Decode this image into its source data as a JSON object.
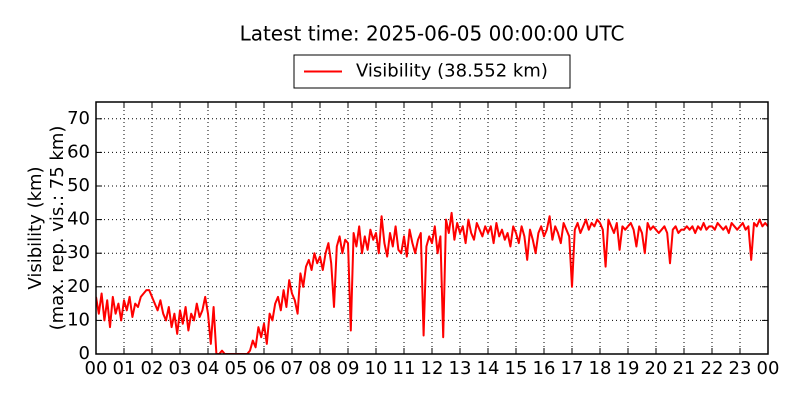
{
  "chart_data": {
    "type": "line",
    "title": "Latest time: 2025-06-05 00:00:00 UTC",
    "ylabel": [
      "Visibility (km)",
      "(max. rep. vis.: 75 km)"
    ],
    "legend": "top",
    "grid": true,
    "xlim": [
      0,
      24
    ],
    "ylim": [
      0,
      75
    ],
    "yticks": [
      0,
      10,
      20,
      30,
      40,
      50,
      60,
      70
    ],
    "xticks": [
      {
        "value": 0,
        "label": "00"
      },
      {
        "value": 1,
        "label": "01"
      },
      {
        "value": 2,
        "label": "02"
      },
      {
        "value": 3,
        "label": "03"
      },
      {
        "value": 4,
        "label": "04"
      },
      {
        "value": 5,
        "label": "05"
      },
      {
        "value": 6,
        "label": "06"
      },
      {
        "value": 7,
        "label": "07"
      },
      {
        "value": 8,
        "label": "08"
      },
      {
        "value": 9,
        "label": "09"
      },
      {
        "value": 10,
        "label": "10"
      },
      {
        "value": 11,
        "label": "11"
      },
      {
        "value": 12,
        "label": "12"
      },
      {
        "value": 13,
        "label": "13"
      },
      {
        "value": 14,
        "label": "14"
      },
      {
        "value": 15,
        "label": "15"
      },
      {
        "value": 16,
        "label": "16"
      },
      {
        "value": 17,
        "label": "17"
      },
      {
        "value": 18,
        "label": "18"
      },
      {
        "value": 19,
        "label": "19"
      },
      {
        "value": 20,
        "label": "20"
      },
      {
        "value": 21,
        "label": "21"
      },
      {
        "value": 22,
        "label": "22"
      },
      {
        "value": 23,
        "label": "23"
      },
      {
        "value": 24,
        "label": "00"
      }
    ],
    "x": [
      0,
      0.1,
      0.2,
      0.3,
      0.4,
      0.5,
      0.6,
      0.7,
      0.8,
      0.9,
      1,
      1.1,
      1.2,
      1.3,
      1.4,
      1.5,
      1.6,
      1.7,
      1.8,
      1.9,
      2,
      2.1,
      2.2,
      2.3,
      2.4,
      2.5,
      2.6,
      2.7,
      2.8,
      2.9,
      3,
      3.1,
      3.2,
      3.3,
      3.4,
      3.5,
      3.6,
      3.7,
      3.8,
      3.9,
      4,
      4.1,
      4.2,
      4.3,
      4.4,
      4.5,
      4.6,
      4.7,
      4.8,
      4.9,
      5,
      5.1,
      5.2,
      5.3,
      5.4,
      5.5,
      5.6,
      5.7,
      5.8,
      5.9,
      6,
      6.1,
      6.2,
      6.3,
      6.4,
      6.5,
      6.6,
      6.7,
      6.8,
      6.9,
      7,
      7.1,
      7.2,
      7.3,
      7.4,
      7.5,
      7.6,
      7.7,
      7.8,
      7.9,
      8,
      8.1,
      8.2,
      8.3,
      8.4,
      8.5,
      8.6,
      8.7,
      8.8,
      8.9,
      9,
      9.1,
      9.2,
      9.3,
      9.4,
      9.5,
      9.6,
      9.7,
      9.8,
      9.9,
      10,
      10.1,
      10.2,
      10.3,
      10.4,
      10.5,
      10.6,
      10.7,
      10.8,
      10.9,
      11,
      11.1,
      11.2,
      11.3,
      11.4,
      11.5,
      11.6,
      11.7,
      11.8,
      11.9,
      12,
      12.1,
      12.2,
      12.3,
      12.4,
      12.5,
      12.6,
      12.7,
      12.8,
      12.9,
      13,
      13.1,
      13.2,
      13.3,
      13.4,
      13.5,
      13.6,
      13.7,
      13.8,
      13.9,
      14,
      14.1,
      14.2,
      14.3,
      14.4,
      14.5,
      14.6,
      14.7,
      14.8,
      14.9,
      15,
      15.1,
      15.2,
      15.3,
      15.4,
      15.5,
      15.6,
      15.7,
      15.8,
      15.9,
      16,
      16.1,
      16.2,
      16.3,
      16.4,
      16.5,
      16.6,
      16.7,
      16.8,
      16.9,
      17,
      17.1,
      17.2,
      17.3,
      17.4,
      17.5,
      17.6,
      17.7,
      17.8,
      17.9,
      18,
      18.1,
      18.2,
      18.3,
      18.4,
      18.5,
      18.6,
      18.7,
      18.8,
      18.9,
      19,
      19.1,
      19.2,
      19.3,
      19.4,
      19.5,
      19.6,
      19.7,
      19.8,
      19.9,
      20,
      20.1,
      20.2,
      20.3,
      20.4,
      20.5,
      20.6,
      20.7,
      20.8,
      20.9,
      21,
      21.1,
      21.2,
      21.3,
      21.4,
      21.5,
      21.6,
      21.7,
      21.8,
      21.9,
      22,
      22.1,
      22.2,
      22.3,
      22.4,
      22.5,
      22.6,
      22.7,
      22.8,
      22.9,
      23,
      23.1,
      23.2,
      23.3,
      23.4,
      23.5,
      23.6,
      23.7,
      23.8,
      23.9,
      24
    ],
    "series": [
      {
        "name": "Visibility (38.552 km)",
        "color": "#ff0000",
        "values": [
          17,
          12,
          18,
          10,
          16,
          8,
          17,
          12,
          15,
          10,
          16,
          13,
          17,
          11,
          15,
          14,
          17,
          18,
          19,
          19,
          17,
          15,
          13,
          16,
          12,
          10,
          14,
          8,
          12,
          6,
          13,
          9,
          14,
          7,
          12,
          10,
          15,
          11,
          13,
          17,
          12,
          3,
          14,
          0,
          0,
          1,
          0,
          0,
          0,
          0,
          0,
          0,
          0,
          0,
          0,
          1,
          4,
          2,
          8,
          5,
          9,
          3,
          12,
          10,
          15,
          17,
          13,
          19,
          14,
          22,
          18,
          16,
          12,
          24,
          20,
          26,
          28,
          25,
          30,
          27,
          29,
          25,
          30,
          33,
          27,
          14,
          32,
          35,
          30,
          34,
          33,
          7,
          36,
          32,
          38,
          30,
          35,
          31,
          37,
          34,
          36,
          30,
          41,
          33,
          29,
          36,
          32,
          38,
          31,
          30,
          35,
          29,
          37,
          33,
          30,
          34,
          36,
          5.5,
          32,
          35,
          33,
          38,
          30,
          35,
          5,
          40,
          36,
          42,
          34,
          39,
          36,
          38,
          33,
          40,
          36,
          34,
          39,
          37,
          35,
          38,
          36,
          38,
          33,
          39,
          35,
          37,
          34,
          36,
          32,
          38,
          36,
          33,
          38,
          35,
          28,
          37,
          34,
          30,
          36,
          38,
          35,
          37,
          41,
          34,
          38,
          36,
          33,
          39,
          37,
          35,
          20,
          37,
          39,
          36,
          38,
          40,
          37,
          39,
          38,
          40,
          39,
          37,
          26,
          40,
          38,
          36,
          39,
          31,
          38,
          37,
          38,
          39,
          37,
          32,
          38,
          36,
          30,
          39,
          37,
          38,
          37,
          36,
          37,
          38,
          36,
          27,
          37,
          38,
          36,
          37,
          37,
          38,
          37,
          38,
          36,
          38,
          37,
          39,
          37,
          38,
          38,
          37,
          39,
          38,
          37,
          38,
          36,
          39,
          38,
          37,
          38,
          39,
          37,
          38,
          28,
          39,
          38,
          40,
          38,
          39,
          38
        ]
      }
    ]
  }
}
